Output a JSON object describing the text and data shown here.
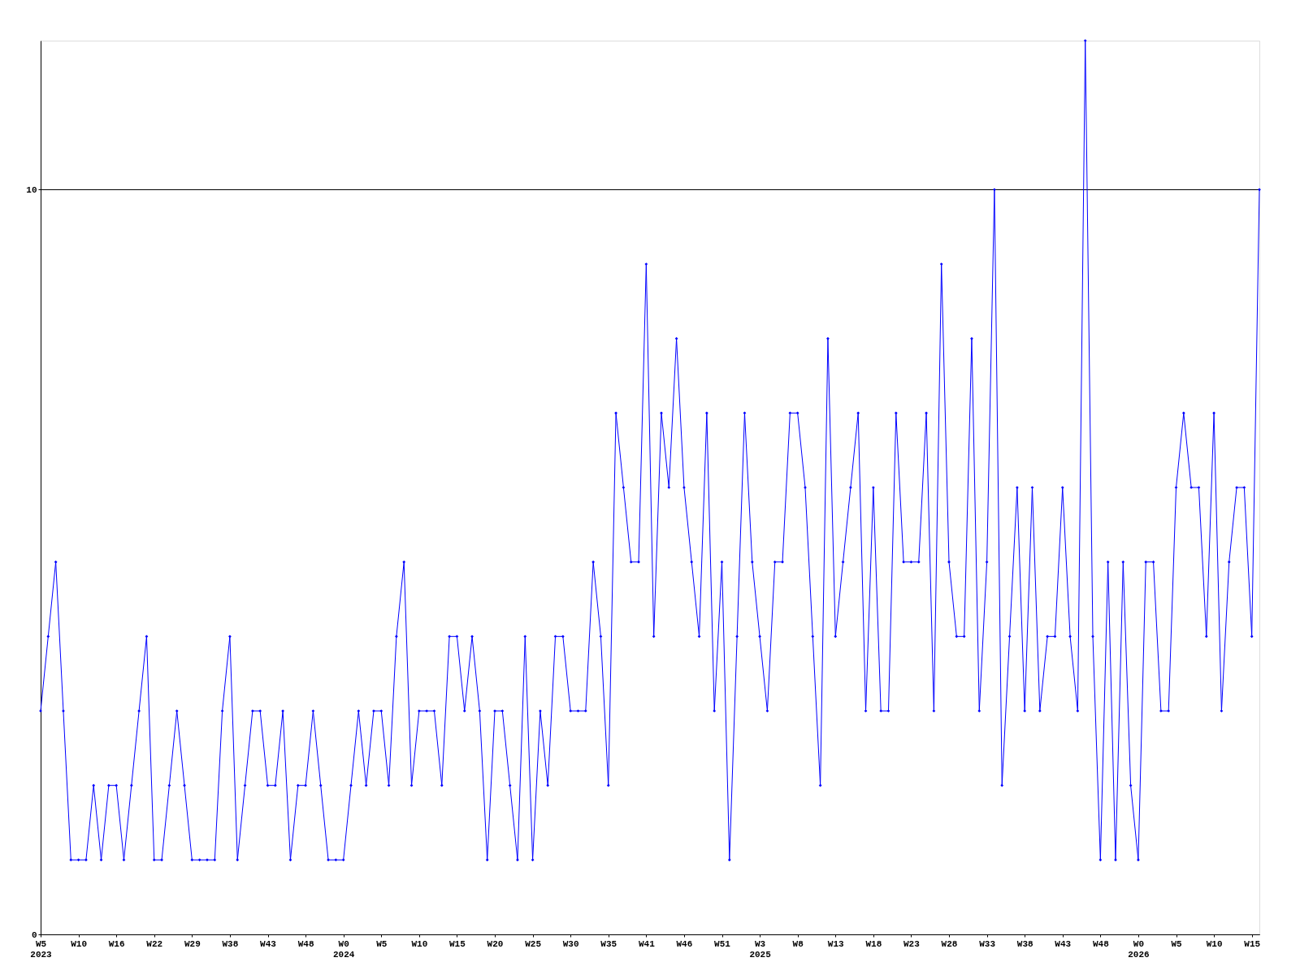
{
  "chart_data": {
    "type": "line",
    "categories": [
      "W5\n2023",
      null,
      null,
      null,
      null,
      "W10",
      null,
      null,
      null,
      null,
      "W16",
      null,
      null,
      null,
      null,
      "W22",
      null,
      null,
      null,
      null,
      "W29",
      null,
      null,
      null,
      null,
      "W38",
      null,
      null,
      null,
      null,
      "W43",
      null,
      null,
      null,
      null,
      "W48",
      null,
      null,
      null,
      null,
      "W0\n2024",
      null,
      null,
      null,
      null,
      "W5",
      null,
      null,
      null,
      null,
      "W10",
      null,
      null,
      null,
      null,
      "W15",
      null,
      null,
      null,
      null,
      "W20",
      null,
      null,
      null,
      null,
      "W25",
      null,
      null,
      null,
      null,
      "W30",
      null,
      null,
      null,
      null,
      "W35",
      null,
      null,
      null,
      null,
      "W41",
      null,
      null,
      null,
      null,
      "W46",
      null,
      null,
      null,
      null,
      "W51",
      null,
      null,
      null,
      null,
      "W3\n2025",
      null,
      null,
      null,
      null,
      "W8",
      null,
      null,
      null,
      null,
      "W13",
      null,
      null,
      null,
      null,
      "W18",
      null,
      null,
      null,
      null,
      "W23",
      null,
      null,
      null,
      null,
      "W28",
      null,
      null,
      null,
      null,
      "W33",
      null,
      null,
      null,
      null,
      "W38",
      null,
      null,
      null,
      null,
      "W43",
      null,
      null,
      null,
      null,
      "W48",
      null,
      null,
      null,
      null,
      "W0\n2026",
      null,
      null,
      null,
      null,
      "W5",
      null,
      null,
      null,
      null,
      "W10",
      null,
      null,
      null,
      null,
      "W15",
      null
    ],
    "series": [
      {
        "color": "#0000ff",
        "values": [
          3,
          4,
          5,
          3,
          1,
          1,
          1,
          2,
          1,
          2,
          2,
          1,
          2,
          3,
          4,
          1,
          1,
          2,
          3,
          2,
          1,
          1,
          1,
          1,
          3,
          4,
          1,
          2,
          3,
          3,
          2,
          2,
          3,
          1,
          2,
          2,
          3,
          2,
          1,
          1,
          1,
          2,
          3,
          2,
          3,
          3,
          2,
          4,
          5,
          2,
          3,
          3,
          3,
          2,
          4,
          4,
          3,
          4,
          3,
          1,
          3,
          3,
          2,
          1,
          4,
          1,
          3,
          2,
          4,
          4,
          3,
          3,
          3,
          5,
          4,
          2,
          7,
          6,
          5,
          5,
          9,
          4,
          7,
          6,
          8,
          6,
          5,
          4,
          7,
          3,
          5,
          1,
          4,
          7,
          5,
          4,
          3,
          5,
          5,
          7,
          7,
          6,
          4,
          2,
          8,
          4,
          5,
          6,
          7,
          3,
          6,
          3,
          3,
          7,
          5,
          5,
          5,
          7,
          3,
          9,
          5,
          4,
          4,
          8,
          3,
          5,
          10,
          2,
          4,
          6,
          3,
          6,
          3,
          4,
          4,
          6,
          4,
          3,
          12,
          4,
          1,
          5,
          1,
          5,
          2,
          1,
          5,
          5,
          3,
          3,
          6,
          7,
          6,
          6,
          4,
          7,
          3,
          5,
          6,
          6,
          4,
          10
        ]
      }
    ],
    "ylim": [
      0,
      12
    ],
    "yticks": [
      0,
      10
    ],
    "grid": "y",
    "marker": "diamond",
    "line_style": "solid"
  }
}
